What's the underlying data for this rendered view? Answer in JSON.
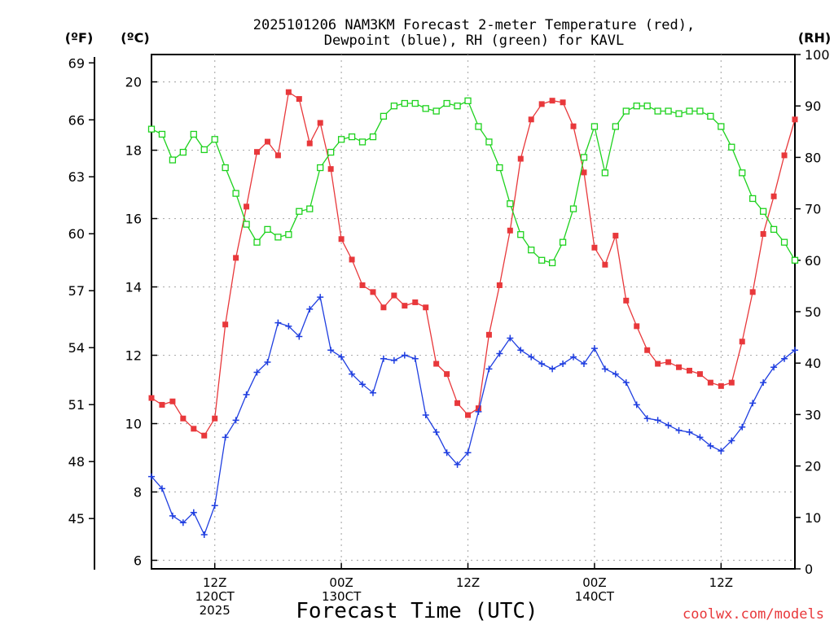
{
  "chart_data": {
    "type": "line",
    "title_line1": "2025101206 NAM3KM Forecast 2-meter Temperature (red),",
    "title_line2": "Dewpoint (blue), RH (green) for KAVL",
    "xlabel": "Forecast Time (UTC)",
    "credit": "coolwx.com/models",
    "units": {
      "left_f": "(ºF)",
      "left_c": "(ºC)",
      "right": "(RH)"
    },
    "celsius_axis": {
      "ylim": [
        5.75,
        20.8
      ],
      "ticks": [
        "6",
        "8",
        "10",
        "12",
        "14",
        "16",
        "18",
        "20"
      ]
    },
    "fahrenheit_axis": {
      "ticks": [
        {
          "label": "45",
          "value": 45
        },
        {
          "label": "48",
          "value": 48
        },
        {
          "label": "51",
          "value": 51
        },
        {
          "label": "54",
          "value": 54
        },
        {
          "label": "57",
          "value": 57
        },
        {
          "label": "60",
          "value": 60
        },
        {
          "label": "63",
          "value": 63
        },
        {
          "label": "66",
          "value": 66
        },
        {
          "label": "69",
          "value": 69
        }
      ]
    },
    "rh_axis": {
      "ylim": [
        0,
        100
      ],
      "ticks": [
        "0",
        "10",
        "20",
        "30",
        "40",
        "50",
        "60",
        "70",
        "80",
        "90",
        "100"
      ]
    },
    "x_range": [
      0,
      61
    ],
    "x_ticks": [
      {
        "x": 6,
        "lines": [
          "12Z",
          "120CT",
          "2025"
        ]
      },
      {
        "x": 18,
        "lines": [
          "00Z",
          "130CT"
        ]
      },
      {
        "x": 30,
        "lines": [
          "12Z"
        ]
      },
      {
        "x": 42,
        "lines": [
          "00Z",
          "140CT"
        ]
      },
      {
        "x": 54,
        "lines": [
          "12Z"
        ]
      }
    ],
    "series": [
      {
        "name": "2-meter Temperature",
        "unit": "C",
        "color": "#e8383b",
        "marker": "filled-square",
        "values": [
          10.75,
          10.55,
          10.65,
          10.15,
          9.85,
          9.65,
          10.15,
          12.9,
          14.85,
          16.35,
          17.95,
          18.25,
          17.85,
          19.7,
          19.5,
          18.2,
          18.8,
          17.45,
          15.4,
          14.8,
          14.05,
          13.85,
          13.4,
          13.75,
          13.45,
          13.55,
          13.4,
          11.75,
          11.45,
          10.6,
          10.25,
          10.45,
          12.6,
          14.05,
          15.65,
          17.75,
          18.9,
          19.35,
          19.45,
          19.4,
          18.7,
          17.35,
          15.15,
          14.65,
          15.5,
          13.6,
          12.85,
          12.15,
          11.75,
          11.8,
          11.65,
          11.55,
          11.45,
          11.2,
          11.1,
          11.2,
          12.4,
          13.85,
          15.55,
          16.65,
          17.85,
          18.9
        ]
      },
      {
        "name": "Dewpoint",
        "unit": "C",
        "color": "#1f3ee0",
        "marker": "plus",
        "values": [
          8.45,
          8.1,
          7.3,
          7.1,
          7.4,
          6.75,
          7.6,
          9.6,
          10.1,
          10.85,
          11.5,
          11.8,
          12.95,
          12.85,
          12.55,
          13.35,
          13.7,
          12.15,
          11.95,
          11.45,
          11.15,
          10.9,
          11.9,
          11.85,
          12.0,
          11.9,
          10.25,
          9.75,
          9.15,
          8.8,
          9.15,
          10.35,
          11.6,
          12.05,
          12.5,
          12.15,
          11.95,
          11.75,
          11.6,
          11.75,
          11.95,
          11.75,
          12.2,
          11.6,
          11.45,
          11.2,
          10.55,
          10.15,
          10.1,
          9.95,
          9.8,
          9.75,
          9.6,
          9.35,
          9.2,
          9.5,
          9.9,
          10.6,
          11.2,
          11.65,
          11.9,
          12.15
        ]
      },
      {
        "name": "RH",
        "unit": "%",
        "color": "#1ed21e",
        "marker": "open-square",
        "values": [
          85.5,
          84.5,
          79.5,
          81,
          84.5,
          81.5,
          83.5,
          78,
          73,
          67,
          63.5,
          66,
          64.5,
          65,
          69.5,
          70,
          78,
          81,
          83.5,
          84,
          83,
          84,
          88,
          90,
          90.5,
          90.5,
          89.5,
          89,
          90.5,
          90,
          91,
          86,
          83,
          78,
          71,
          65,
          62,
          60,
          59.5,
          63.5,
          70,
          80,
          86,
          77,
          86,
          89,
          90,
          90,
          89,
          89,
          88.5,
          89,
          89,
          88,
          86,
          82,
          77,
          72,
          69.5,
          66,
          63.5,
          60
        ]
      }
    ]
  }
}
